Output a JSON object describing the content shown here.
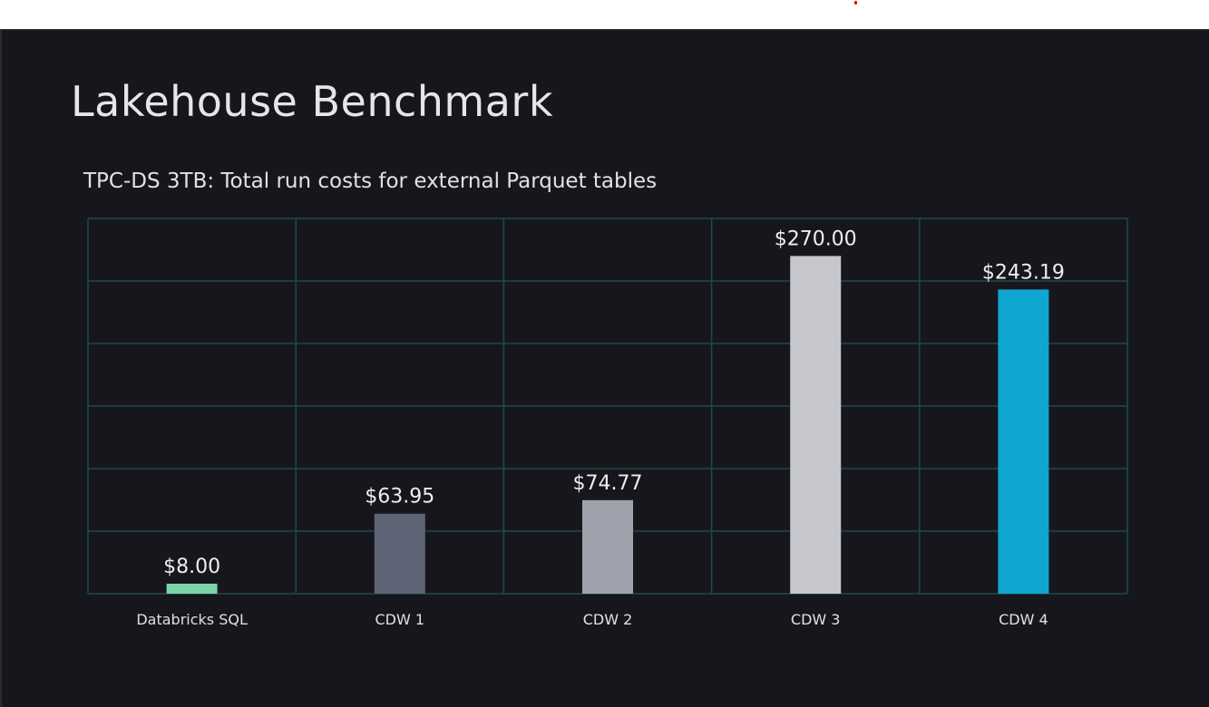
{
  "slide": {
    "title": "Lakehouse Benchmark"
  },
  "chart_data": {
    "type": "bar",
    "title": "TPC-DS 3TB: Total run costs for external Parquet tables",
    "categories": [
      "Databricks SQL",
      "CDW 1",
      "CDW 2",
      "CDW 3",
      "CDW 4"
    ],
    "values": [
      8.0,
      63.95,
      74.77,
      270.0,
      243.19
    ],
    "data_labels": [
      "$8.00",
      "$63.95",
      "$74.77",
      "$270.00",
      "$243.19"
    ],
    "colors": [
      "#7dd3a6",
      "#5e6475",
      "#9fa2ad",
      "#c5c7cd",
      "#0fa6cf"
    ],
    "ylim": [
      0,
      300
    ],
    "ytick_step": 50,
    "grid": true,
    "grid_color": "#1f4a4c",
    "xlabel": "",
    "ylabel": ""
  }
}
